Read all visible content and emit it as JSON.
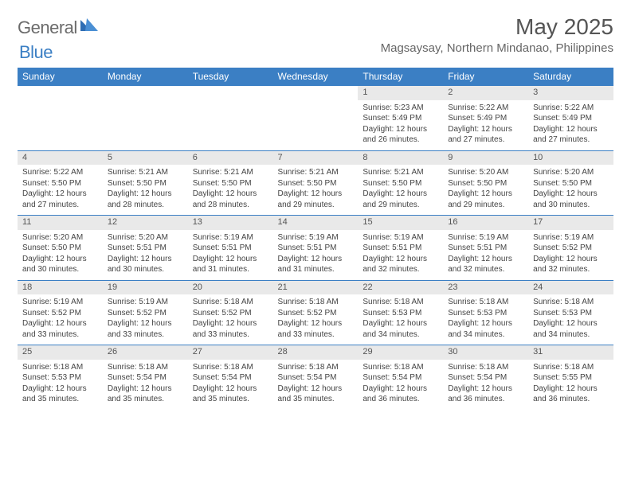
{
  "brand": {
    "general": "General",
    "blue": "Blue"
  },
  "title": "May 2025",
  "location": "Magsaysay, Northern Mindanao, Philippines",
  "colors": {
    "header_bg": "#3b7fc4",
    "header_text": "#ffffff",
    "daynum_bg": "#e9e9e9",
    "text": "#444444",
    "border": "#3b7fc4"
  },
  "days_of_week": [
    "Sunday",
    "Monday",
    "Tuesday",
    "Wednesday",
    "Thursday",
    "Friday",
    "Saturday"
  ],
  "weeks": [
    [
      null,
      null,
      null,
      null,
      {
        "n": "1",
        "sr": "5:23 AM",
        "ss": "5:49 PM",
        "dl": "12 hours and 26 minutes."
      },
      {
        "n": "2",
        "sr": "5:22 AM",
        "ss": "5:49 PM",
        "dl": "12 hours and 27 minutes."
      },
      {
        "n": "3",
        "sr": "5:22 AM",
        "ss": "5:49 PM",
        "dl": "12 hours and 27 minutes."
      }
    ],
    [
      {
        "n": "4",
        "sr": "5:22 AM",
        "ss": "5:50 PM",
        "dl": "12 hours and 27 minutes."
      },
      {
        "n": "5",
        "sr": "5:21 AM",
        "ss": "5:50 PM",
        "dl": "12 hours and 28 minutes."
      },
      {
        "n": "6",
        "sr": "5:21 AM",
        "ss": "5:50 PM",
        "dl": "12 hours and 28 minutes."
      },
      {
        "n": "7",
        "sr": "5:21 AM",
        "ss": "5:50 PM",
        "dl": "12 hours and 29 minutes."
      },
      {
        "n": "8",
        "sr": "5:21 AM",
        "ss": "5:50 PM",
        "dl": "12 hours and 29 minutes."
      },
      {
        "n": "9",
        "sr": "5:20 AM",
        "ss": "5:50 PM",
        "dl": "12 hours and 29 minutes."
      },
      {
        "n": "10",
        "sr": "5:20 AM",
        "ss": "5:50 PM",
        "dl": "12 hours and 30 minutes."
      }
    ],
    [
      {
        "n": "11",
        "sr": "5:20 AM",
        "ss": "5:50 PM",
        "dl": "12 hours and 30 minutes."
      },
      {
        "n": "12",
        "sr": "5:20 AM",
        "ss": "5:51 PM",
        "dl": "12 hours and 30 minutes."
      },
      {
        "n": "13",
        "sr": "5:19 AM",
        "ss": "5:51 PM",
        "dl": "12 hours and 31 minutes."
      },
      {
        "n": "14",
        "sr": "5:19 AM",
        "ss": "5:51 PM",
        "dl": "12 hours and 31 minutes."
      },
      {
        "n": "15",
        "sr": "5:19 AM",
        "ss": "5:51 PM",
        "dl": "12 hours and 32 minutes."
      },
      {
        "n": "16",
        "sr": "5:19 AM",
        "ss": "5:51 PM",
        "dl": "12 hours and 32 minutes."
      },
      {
        "n": "17",
        "sr": "5:19 AM",
        "ss": "5:52 PM",
        "dl": "12 hours and 32 minutes."
      }
    ],
    [
      {
        "n": "18",
        "sr": "5:19 AM",
        "ss": "5:52 PM",
        "dl": "12 hours and 33 minutes."
      },
      {
        "n": "19",
        "sr": "5:19 AM",
        "ss": "5:52 PM",
        "dl": "12 hours and 33 minutes."
      },
      {
        "n": "20",
        "sr": "5:18 AM",
        "ss": "5:52 PM",
        "dl": "12 hours and 33 minutes."
      },
      {
        "n": "21",
        "sr": "5:18 AM",
        "ss": "5:52 PM",
        "dl": "12 hours and 33 minutes."
      },
      {
        "n": "22",
        "sr": "5:18 AM",
        "ss": "5:53 PM",
        "dl": "12 hours and 34 minutes."
      },
      {
        "n": "23",
        "sr": "5:18 AM",
        "ss": "5:53 PM",
        "dl": "12 hours and 34 minutes."
      },
      {
        "n": "24",
        "sr": "5:18 AM",
        "ss": "5:53 PM",
        "dl": "12 hours and 34 minutes."
      }
    ],
    [
      {
        "n": "25",
        "sr": "5:18 AM",
        "ss": "5:53 PM",
        "dl": "12 hours and 35 minutes."
      },
      {
        "n": "26",
        "sr": "5:18 AM",
        "ss": "5:54 PM",
        "dl": "12 hours and 35 minutes."
      },
      {
        "n": "27",
        "sr": "5:18 AM",
        "ss": "5:54 PM",
        "dl": "12 hours and 35 minutes."
      },
      {
        "n": "28",
        "sr": "5:18 AM",
        "ss": "5:54 PM",
        "dl": "12 hours and 35 minutes."
      },
      {
        "n": "29",
        "sr": "5:18 AM",
        "ss": "5:54 PM",
        "dl": "12 hours and 36 minutes."
      },
      {
        "n": "30",
        "sr": "5:18 AM",
        "ss": "5:54 PM",
        "dl": "12 hours and 36 minutes."
      },
      {
        "n": "31",
        "sr": "5:18 AM",
        "ss": "5:55 PM",
        "dl": "12 hours and 36 minutes."
      }
    ]
  ],
  "labels": {
    "sunrise": "Sunrise: ",
    "sunset": "Sunset: ",
    "daylight": "Daylight: "
  }
}
